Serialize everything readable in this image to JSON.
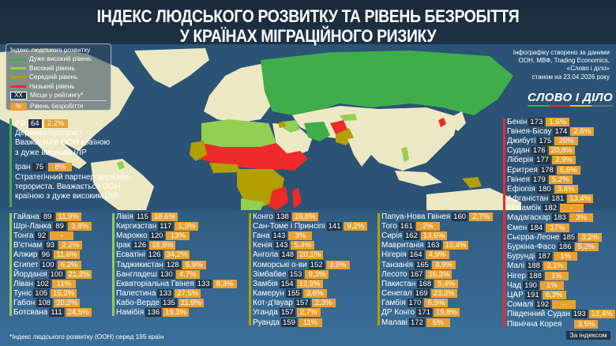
{
  "header": {
    "title_line1": "ІНДЕКС ЛЮДСЬКОГО РОЗВИТКУ ТА РІВЕНЬ БЕЗРОБІТТЯ",
    "title_line2": "У КРАЇНАХ МІГРАЦІЙНОГО РИЗИКУ"
  },
  "colors": {
    "very_high": "#3fae4a",
    "high": "#92cf52",
    "medium": "#b1a000",
    "low": "#ee2a2a",
    "unemployment": "#e8a132",
    "rank_bg": "#213548",
    "land": "#ede8c4",
    "ocean": "#2d5579"
  },
  "legend": {
    "title": "Індекс людського розвитку",
    "items": [
      {
        "label": "Дуже високий рівень",
        "color": "#3fae4a"
      },
      {
        "label": "Високий рівень",
        "color": "#92cf52"
      },
      {
        "label": "Середній рівень",
        "color": "#b1a000"
      },
      {
        "label": "Низький рівень",
        "color": "#ee2a2a"
      }
    ],
    "rank_box": "XX",
    "rank_label": "Місце у рейтингу*",
    "pct_box": "%",
    "pct_label": "Рівень безробіття"
  },
  "sources": {
    "line1": "Інфографіку створено за даними",
    "line2": "ООН, МВФ, Trading Economics,",
    "line3": "«Слово і діло»",
    "line4": "станом на 23.04.2026 року"
  },
  "logo": {
    "text": "СЛОВО І ДІЛО"
  },
  "notes": [
    {
      "country": "рф",
      "rank": "64",
      "pct": "2,2%",
      "lines": [
        "Держава-терорист",
        "Вважається ООН країною",
        "з дуже високим ІЛР"
      ]
    },
    {
      "country": "Іран",
      "rank": "75",
      "pct": "8%",
      "lines": [
        "Стратегічний партнер держави-",
        "терориста. Вважається ООН",
        "країною з дуже високим ІЛР"
      ]
    }
  ],
  "columns": [
    {
      "level": "high",
      "rows": [
        {
          "country": "Гайана",
          "rank": "89",
          "pct": "11,9%"
        },
        {
          "country": "Шрі-Ланка",
          "rank": "89",
          "pct": "3,8%"
        },
        {
          "country": "Тонга",
          "rank": "92",
          "pct": "-"
        },
        {
          "country": "В'єтнам",
          "rank": "93",
          "pct": "2,2%"
        },
        {
          "country": "Алжир",
          "rank": "96",
          "pct": "11,6%"
        },
        {
          "country": "Єгипет",
          "rank": "100",
          "pct": "6,2%"
        },
        {
          "country": "Йорданія",
          "rank": "100",
          "pct": "21,2%"
        },
        {
          "country": "Ліван",
          "rank": "102",
          "pct": "11%"
        },
        {
          "country": "Туніс",
          "rank": "105",
          "pct": "15,2%"
        },
        {
          "country": "Габон",
          "rank": "108",
          "pct": "20,2%"
        },
        {
          "country": "Ботсвана",
          "rank": "111",
          "pct": "24,5%"
        }
      ]
    },
    {
      "level": "high",
      "rows": [
        {
          "country": "Лівія",
          "rank": "115",
          "pct": "18,6%"
        },
        {
          "country": "Киргизстан",
          "rank": "117",
          "pct": "1,3%"
        },
        {
          "country": "Марокко",
          "rank": "120",
          "pct": "13%"
        },
        {
          "country": "Ірак",
          "rank": "126",
          "pct": "15,5%"
        },
        {
          "country": "Есватіні",
          "rank": "126",
          "pct": "34,2%"
        },
        {
          "country": "Таджикистан",
          "rank": "128",
          "pct": "6,9%"
        },
        {
          "country": "Бангладеш",
          "rank": "130",
          "pct": "4,7%"
        },
        {
          "country": "Екваторіальна Гвінея",
          "rank": "133",
          "pct": "8,3%"
        },
        {
          "country": "Палестина",
          "rank": "133",
          "pct": "27,5%"
        },
        {
          "country": "Кабо-Верде",
          "rank": "135",
          "pct": "11,9%"
        },
        {
          "country": "Намібія",
          "rank": "136",
          "pct": "19,3%"
        }
      ]
    },
    {
      "level": "medium",
      "rows": [
        {
          "country": "Конго",
          "rank": "138",
          "pct": "19,8%"
        },
        {
          "country": "Сан-Томе і Принсіпі",
          "rank": "141",
          "pct": "9,2%"
        },
        {
          "country": "Гана",
          "rank": "143",
          "pct": "3%"
        },
        {
          "country": "Кенія",
          "rank": "143",
          "pct": "5,4%"
        },
        {
          "country": "Ангола",
          "rank": "148",
          "pct": "20,1%"
        },
        {
          "country": "Коморські о-ви",
          "rank": "152",
          "pct": "3,9%"
        },
        {
          "country": "Зімбабве",
          "rank": "153",
          "pct": "9,3%"
        },
        {
          "country": "Замбія",
          "rank": "154",
          "pct": "12,9%"
        },
        {
          "country": "Камерун",
          "rank": "155",
          "pct": "3,6%"
        },
        {
          "country": "Кот-д'Івуар",
          "rank": "157",
          "pct": "2,3%"
        },
        {
          "country": "Уганда",
          "rank": "157",
          "pct": "2,7%"
        },
        {
          "country": "Руанда",
          "rank": "159",
          "pct": "11%"
        }
      ]
    },
    {
      "level": "medium",
      "rows": [
        {
          "country": "Папуа-Нова Гвінея",
          "rank": "160",
          "pct": "2,7%"
        },
        {
          "country": "Того",
          "rank": "161",
          "pct": "2%"
        },
        {
          "country": "Сирія",
          "rank": "162",
          "pct": "13,6%"
        },
        {
          "country": "Мавританія",
          "rank": "163",
          "pct": "10,4%"
        },
        {
          "country": "Нігерія",
          "rank": "164",
          "pct": "4,9%"
        },
        {
          "country": "Танзанія",
          "rank": "165",
          "pct": "8,9%"
        },
        {
          "country": "Лесото",
          "rank": "167",
          "pct": "16,3%"
        },
        {
          "country": "Пакистан",
          "rank": "168",
          "pct": "5,4%"
        },
        {
          "country": "Сенегал",
          "rank": "169",
          "pct": "23,3%"
        },
        {
          "country": "Гамбія",
          "rank": "170",
          "pct": "6,5%"
        },
        {
          "country": "ДР Конго",
          "rank": "171",
          "pct": "19,8%"
        },
        {
          "country": "Малаві",
          "rank": "172",
          "pct": "5%"
        }
      ]
    },
    {
      "level": "low",
      "rows": [
        {
          "country": "Бенін",
          "rank": "173",
          "pct": "1,6%"
        },
        {
          "country": "Гвінея-Бісау",
          "rank": "174",
          "pct": "2,6%"
        },
        {
          "country": "Джибуті",
          "rank": "175",
          "pct": "26%"
        },
        {
          "country": "Судан",
          "rank": "176",
          "pct": "20,8%"
        },
        {
          "country": "Ліберія",
          "rank": "177",
          "pct": "2,9%"
        },
        {
          "country": "Еритрея",
          "rank": "178",
          "pct": "5,6%"
        },
        {
          "country": "Гвінея",
          "rank": "179",
          "pct": "5,2%"
        },
        {
          "country": "Ефіопія",
          "rank": "180",
          "pct": "3,4%"
        },
        {
          "country": "Афганістан",
          "rank": "181",
          "pct": "13,4%"
        },
        {
          "country": "Мозамбік",
          "rank": "182",
          "pct": "-"
        },
        {
          "country": "Мадагаскар",
          "rank": "183",
          "pct": "3%"
        },
        {
          "country": "Ємен",
          "rank": "184",
          "pct": "17%"
        },
        {
          "country": "Сьєрра-Леоне",
          "rank": "185",
          "pct": "3,2%"
        },
        {
          "country": "Буркіна-Фасо",
          "rank": "186",
          "pct": "5,2%"
        },
        {
          "country": "Бурунді",
          "rank": "187",
          "pct": "1%"
        },
        {
          "country": "Малі",
          "rank": "188",
          "pct": "3,1%"
        },
        {
          "country": "Нігер",
          "rank": "188",
          "pct": "1%"
        },
        {
          "country": "Чад",
          "rank": "190",
          "pct": "1%"
        },
        {
          "country": "ЦАР",
          "rank": "191",
          "pct": "6,3%"
        },
        {
          "country": "Сомалі",
          "rank": "192",
          "pct": "-"
        },
        {
          "country": "Південний Судан",
          "rank": "193",
          "pct": "12,4%"
        },
        {
          "country": "Північна Корея",
          "rank": "",
          "pct": "3,5%"
        }
      ]
    }
  ],
  "footnote": "*Індекс людського розвитку (ООН) серед 195 країн",
  "sort_button": "За індексом"
}
